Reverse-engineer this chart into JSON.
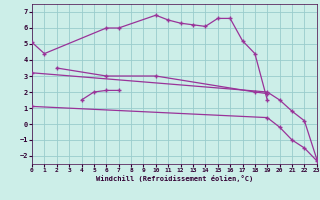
{
  "background_color": "#cceee8",
  "grid_color": "#99cccc",
  "line_color": "#993399",
  "xlabel": "Windchill (Refroidissement éolien,°C)",
  "xlim": [
    0,
    23
  ],
  "ylim": [
    -2.5,
    7.5
  ],
  "xticks": [
    0,
    1,
    2,
    3,
    4,
    5,
    6,
    7,
    8,
    9,
    10,
    11,
    12,
    13,
    14,
    15,
    16,
    17,
    18,
    19,
    20,
    21,
    22,
    23
  ],
  "yticks": [
    -2,
    -1,
    0,
    1,
    2,
    3,
    4,
    5,
    6,
    7
  ],
  "line1_x": [
    0,
    1,
    6,
    7,
    10,
    11,
    12,
    13,
    14,
    15,
    16,
    17,
    18,
    19
  ],
  "line1_y": [
    5.1,
    4.4,
    6.0,
    6.0,
    6.8,
    6.5,
    6.3,
    6.2,
    6.1,
    6.6,
    6.6,
    5.2,
    4.4,
    1.5
  ],
  "line2_x": [
    4,
    5,
    6,
    7
  ],
  "line2_y": [
    1.5,
    2.0,
    2.1,
    2.1
  ],
  "line3_x": [
    2,
    6,
    10,
    18,
    19
  ],
  "line3_y": [
    3.5,
    3.0,
    3.0,
    2.0,
    1.9
  ],
  "line4_x": [
    0,
    19,
    20,
    21,
    22,
    23
  ],
  "line4_y": [
    3.2,
    2.0,
    1.5,
    0.8,
    0.2,
    -2.2
  ],
  "line5_x": [
    0,
    19,
    20,
    21,
    22,
    23
  ],
  "line5_y": [
    1.1,
    0.4,
    -0.2,
    -1.0,
    -1.5,
    -2.3
  ]
}
